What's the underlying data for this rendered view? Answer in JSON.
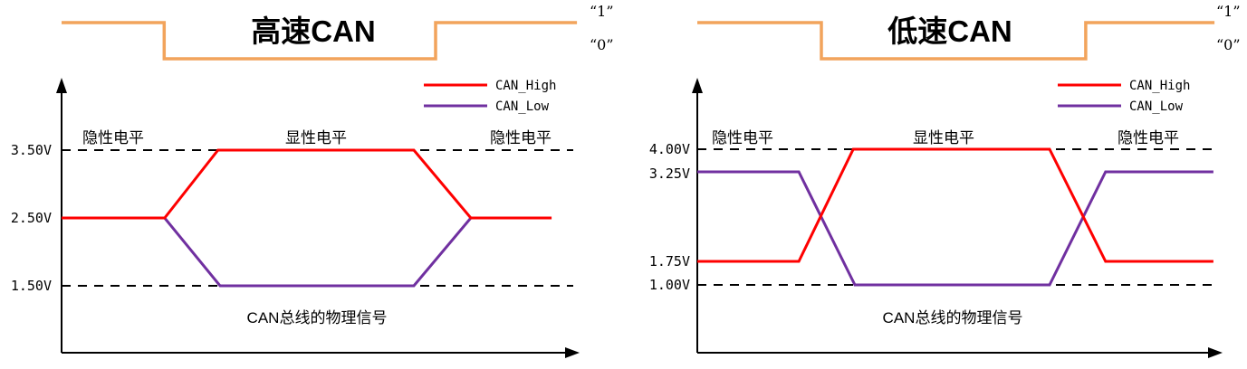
{
  "colors": {
    "can_high": "#fe0000",
    "can_low": "#7030a0",
    "digital_signal": "#f2a45c",
    "title": "#1f3864",
    "axis": "#000000"
  },
  "left_panel": {
    "title": "高速CAN",
    "bit_labels": {
      "one": "“1”",
      "zero": "“0”"
    },
    "legend": {
      "high_label": "CAN_High",
      "low_label": "CAN_Low"
    },
    "region_labels": {
      "left": "隐性电平",
      "middle": "显性电平",
      "right": "隐性电平"
    },
    "voltage_labels": {
      "v1": "3.50V",
      "v2": "2.50V",
      "v3": "1.50V"
    },
    "bottom_label": "CAN总线的物理信号"
  },
  "right_panel": {
    "title": "低速CAN",
    "bit_labels": {
      "one": "“1”",
      "zero": "“0”"
    },
    "legend": {
      "high_label": "CAN_High",
      "low_label": "CAN_Low"
    },
    "region_labels": {
      "left": "隐性电平",
      "middle": "显性电平",
      "right": "隐性电平"
    },
    "voltage_labels": {
      "v1": "4.00V",
      "v2": "3.25V",
      "v3": "1.75V",
      "v4": "1.00V"
    },
    "bottom_label": "CAN总线的物理信号"
  },
  "chart_data": [
    {
      "panel": "left",
      "type": "line",
      "title": "高速CAN",
      "legend_position": "top-right",
      "grid": false,
      "y_unit": "V",
      "y_tick_labels": [
        "3.50V",
        "2.50V",
        "1.50V"
      ],
      "reference_levels_v": [
        3.5,
        1.5
      ],
      "level_annotations": [
        "隐性电平",
        "显性电平",
        "隐性电平"
      ],
      "x_annotation": "CAN总线的物理信号",
      "series": [
        {
          "id": "can-high",
          "name": "CAN_High",
          "recessive_v": 2.5,
          "dominant_v": 3.5,
          "points": [
            [
              0,
              2.5
            ],
            [
              0.199,
              2.5
            ],
            [
              0.302,
              3.5
            ],
            [
              0.68,
              3.5
            ],
            [
              0.79,
              2.5
            ],
            [
              0.946,
              2.5
            ]
          ]
        },
        {
          "id": "can-low",
          "name": "CAN_Low",
          "recessive_v": 2.5,
          "dominant_v": 1.5,
          "points": [
            [
              0.199,
              2.5
            ],
            [
              0.306,
              1.5
            ],
            [
              0.68,
              1.5
            ],
            [
              0.79,
              2.5
            ]
          ]
        }
      ],
      "digital": {
        "label_one": "“1”",
        "label_zero": "“0”",
        "points": [
          [
            0,
            "1"
          ],
          [
            0.198,
            "1"
          ],
          [
            0.198,
            "0"
          ],
          [
            0.722,
            "0"
          ],
          [
            0.722,
            "1"
          ],
          [
            0.995,
            "1"
          ]
        ]
      }
    },
    {
      "panel": "right",
      "type": "line",
      "title": "低速CAN",
      "legend_position": "top-right",
      "grid": false,
      "y_unit": "V",
      "y_tick_labels": [
        "4.00V",
        "3.25V",
        "1.75V",
        "1.00V"
      ],
      "reference_levels_v": [
        4.0,
        1.0
      ],
      "level_annotations": [
        "隐性电平",
        "显性电平",
        "隐性电平"
      ],
      "x_annotation": "CAN总线的物理信号",
      "series": [
        {
          "id": "can-high",
          "name": "CAN_High",
          "recessive_v": 1.75,
          "dominant_v": 4.0,
          "points": [
            [
              0,
              1.75
            ],
            [
              0.194,
              1.75
            ],
            [
              0.298,
              4
            ],
            [
              0.673,
              4
            ],
            [
              0.78,
              1.75
            ],
            [
              0.986,
              1.75
            ]
          ]
        },
        {
          "id": "can-low",
          "name": "CAN_Low",
          "recessive_v": 3.25,
          "dominant_v": 1.0,
          "points": [
            [
              0,
              3.25
            ],
            [
              0.194,
              3.25
            ],
            [
              0.301,
              1
            ],
            [
              0.673,
              1
            ],
            [
              0.78,
              3.25
            ],
            [
              0.986,
              3.25
            ]
          ]
        }
      ],
      "digital": {
        "label_one": "“1”",
        "label_zero": "“0”",
        "points": [
          [
            0,
            "1"
          ],
          [
            0.237,
            "1"
          ],
          [
            0.237,
            "0"
          ],
          [
            0.742,
            "0"
          ],
          [
            0.742,
            "1"
          ],
          [
            0.988,
            "1"
          ]
        ]
      }
    }
  ]
}
